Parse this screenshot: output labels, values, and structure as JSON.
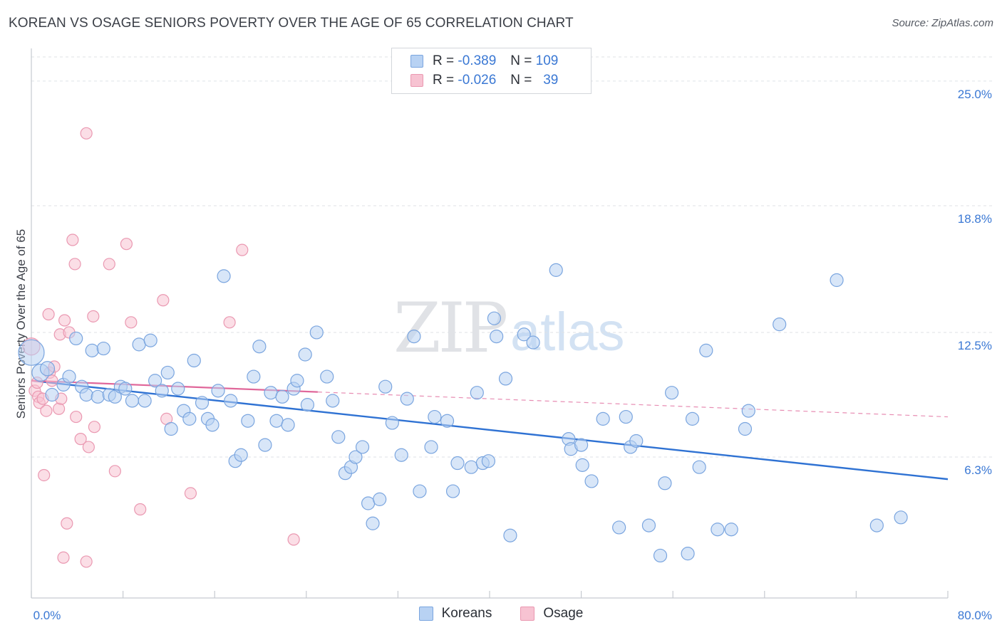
{
  "title": "KOREAN VS OSAGE SENIORS POVERTY OVER THE AGE OF 65 CORRELATION CHART",
  "source": "Source: ZipAtlas.com",
  "watermark": {
    "zip": "ZIP",
    "atlas": "atlas"
  },
  "legend": {
    "rows": [
      {
        "r_label": "R = ",
        "r_value": "-0.389",
        "n_label": "N = ",
        "n_value": "109"
      },
      {
        "r_label": "R = ",
        "r_value": "-0.026",
        "n_label": "N = ",
        "n_value": "39"
      }
    ]
  },
  "bottom_legend": [
    "Koreans",
    "Osage"
  ],
  "colors": {
    "korean_fill": "#b8d2f3",
    "korean_stroke": "#7aa5df",
    "korean_line": "#2f72d3",
    "osage_fill": "#f7c3d2",
    "osage_stroke": "#ea98b1",
    "osage_line": "#e0679a",
    "axis_text": "#3a78d4",
    "grid": "#dfe2e6"
  },
  "chart_data": {
    "type": "scatter",
    "title": "KOREAN VS OSAGE SENIORS POVERTY OVER THE AGE OF 65 CORRELATION CHART",
    "xlabel": "",
    "ylabel": "Seniors Poverty Over the Age of 65",
    "xlim": [
      0,
      80
    ],
    "ylim": [
      0,
      26.2
    ],
    "x_tick_labels": [
      "0.0%",
      "80.0%"
    ],
    "y_ticks": [
      6.3,
      12.5,
      18.8,
      25.0
    ],
    "y_tick_labels": [
      "6.3%",
      "12.5%",
      "18.8%",
      "25.0%"
    ],
    "grid": true,
    "legend_position": "top-center",
    "series": [
      {
        "name": "Koreans",
        "r": -0.389,
        "n": 109,
        "trend": {
          "x": [
            0,
            80
          ],
          "y": [
            10.1,
            5.2
          ]
        },
        "points": [
          [
            0.0,
            11.5,
            18
          ],
          [
            0.8,
            10.5,
            12
          ],
          [
            1.4,
            10.7,
            10
          ],
          [
            1.8,
            9.4,
            9
          ],
          [
            2.8,
            9.9,
            9
          ],
          [
            3.3,
            10.3,
            9
          ],
          [
            3.9,
            12.2,
            9
          ],
          [
            4.4,
            9.8,
            9
          ],
          [
            4.8,
            9.4,
            9
          ],
          [
            5.3,
            11.6,
            9
          ],
          [
            5.8,
            9.3,
            9
          ],
          [
            6.3,
            11.7,
            9
          ],
          [
            6.8,
            9.4,
            9
          ],
          [
            7.3,
            9.3,
            9
          ],
          [
            7.8,
            9.8,
            9
          ],
          [
            8.2,
            9.7,
            9
          ],
          [
            8.8,
            9.1,
            9
          ],
          [
            9.4,
            11.9,
            9
          ],
          [
            9.9,
            9.1,
            9
          ],
          [
            10.4,
            12.1,
            9
          ],
          [
            10.8,
            10.1,
            9
          ],
          [
            11.4,
            9.6,
            9
          ],
          [
            11.9,
            10.5,
            9
          ],
          [
            12.2,
            7.7,
            9
          ],
          [
            12.8,
            9.7,
            9
          ],
          [
            13.3,
            8.6,
            9
          ],
          [
            13.8,
            8.2,
            9
          ],
          [
            14.2,
            11.1,
            9
          ],
          [
            14.9,
            9.0,
            9
          ],
          [
            15.4,
            8.2,
            9
          ],
          [
            15.8,
            7.9,
            9
          ],
          [
            16.3,
            9.6,
            9
          ],
          [
            16.8,
            15.3,
            9
          ],
          [
            17.4,
            9.1,
            9
          ],
          [
            17.8,
            6.1,
            9
          ],
          [
            18.3,
            6.4,
            9
          ],
          [
            18.9,
            8.1,
            9
          ],
          [
            19.4,
            10.3,
            9
          ],
          [
            19.9,
            11.8,
            9
          ],
          [
            20.4,
            6.9,
            9
          ],
          [
            20.9,
            9.5,
            9
          ],
          [
            21.4,
            8.1,
            9
          ],
          [
            21.9,
            9.3,
            9
          ],
          [
            22.4,
            7.9,
            9
          ],
          [
            22.9,
            9.7,
            9
          ],
          [
            23.2,
            10.1,
            9
          ],
          [
            23.9,
            11.4,
            9
          ],
          [
            24.1,
            8.9,
            9
          ],
          [
            24.9,
            12.5,
            9
          ],
          [
            25.8,
            10.3,
            9
          ],
          [
            26.3,
            9.1,
            9
          ],
          [
            26.8,
            7.3,
            9
          ],
          [
            27.4,
            5.5,
            9
          ],
          [
            27.9,
            5.8,
            9
          ],
          [
            28.3,
            6.3,
            9
          ],
          [
            28.9,
            6.8,
            9
          ],
          [
            29.4,
            4.0,
            9
          ],
          [
            29.8,
            3.0,
            9
          ],
          [
            30.4,
            4.2,
            9
          ],
          [
            30.9,
            9.8,
            9
          ],
          [
            31.5,
            8.0,
            9
          ],
          [
            32.3,
            6.4,
            9
          ],
          [
            32.8,
            9.2,
            9
          ],
          [
            33.4,
            12.3,
            9
          ],
          [
            33.9,
            4.6,
            9
          ],
          [
            34.9,
            6.8,
            9
          ],
          [
            35.2,
            8.3,
            9
          ],
          [
            36.3,
            8.1,
            9
          ],
          [
            36.8,
            4.6,
            9
          ],
          [
            37.2,
            6.0,
            9
          ],
          [
            38.4,
            5.8,
            9
          ],
          [
            38.9,
            9.5,
            9
          ],
          [
            39.4,
            6.0,
            9
          ],
          [
            39.9,
            6.1,
            9
          ],
          [
            40.4,
            13.2,
            9
          ],
          [
            40.6,
            12.3,
            9
          ],
          [
            41.8,
            2.4,
            9
          ],
          [
            41.4,
            10.2,
            9
          ],
          [
            43.0,
            12.4,
            9
          ],
          [
            43.8,
            12.0,
            9
          ],
          [
            45.8,
            15.6,
            9
          ],
          [
            46.9,
            7.2,
            9
          ],
          [
            47.1,
            6.7,
            9
          ],
          [
            48.0,
            6.9,
            9
          ],
          [
            48.1,
            5.9,
            9
          ],
          [
            48.9,
            5.1,
            9
          ],
          [
            49.9,
            8.2,
            9
          ],
          [
            51.3,
            2.8,
            9
          ],
          [
            51.9,
            8.3,
            9
          ],
          [
            52.3,
            6.8,
            9
          ],
          [
            52.8,
            7.1,
            9
          ],
          [
            53.9,
            2.9,
            9
          ],
          [
            54.9,
            1.4,
            9
          ],
          [
            55.3,
            5.0,
            9
          ],
          [
            55.9,
            9.5,
            9
          ],
          [
            57.3,
            1.5,
            9
          ],
          [
            57.7,
            8.2,
            9
          ],
          [
            58.3,
            5.8,
            9
          ],
          [
            58.9,
            11.6,
            9
          ],
          [
            59.9,
            2.7,
            9
          ],
          [
            61.1,
            2.7,
            9
          ],
          [
            62.3,
            7.7,
            9
          ],
          [
            62.6,
            8.6,
            9
          ],
          [
            65.3,
            12.9,
            9
          ],
          [
            70.3,
            15.1,
            9
          ],
          [
            73.8,
            2.9,
            9
          ],
          [
            75.9,
            3.3,
            9
          ]
        ]
      },
      {
        "name": "Osage",
        "r": -0.026,
        "n": 39,
        "trend": {
          "x": [
            0,
            80
          ],
          "y": [
            10.1,
            8.3
          ]
        },
        "trend_solid_until": 25,
        "points": [
          [
            0.0,
            11.8,
            12
          ],
          [
            0.3,
            9.6,
            8
          ],
          [
            0.5,
            10.0,
            8
          ],
          [
            0.6,
            9.3,
            8
          ],
          [
            0.7,
            9.0,
            8
          ],
          [
            1.0,
            9.2,
            8
          ],
          [
            1.3,
            8.6,
            8
          ],
          [
            1.5,
            13.4,
            8
          ],
          [
            1.6,
            10.5,
            8
          ],
          [
            1.8,
            10.1,
            8
          ],
          [
            2.0,
            10.8,
            8
          ],
          [
            2.4,
            8.7,
            8
          ],
          [
            2.5,
            12.4,
            8
          ],
          [
            2.6,
            9.2,
            8
          ],
          [
            2.8,
            1.3,
            8
          ],
          [
            2.9,
            13.1,
            8
          ],
          [
            3.1,
            3.0,
            8
          ],
          [
            3.3,
            12.5,
            8
          ],
          [
            3.6,
            17.1,
            8
          ],
          [
            3.8,
            15.9,
            8
          ],
          [
            3.9,
            8.3,
            8
          ],
          [
            4.3,
            7.2,
            8
          ],
          [
            4.8,
            1.1,
            8
          ],
          [
            4.8,
            22.4,
            8
          ],
          [
            5.0,
            6.8,
            8
          ],
          [
            5.4,
            13.3,
            8
          ],
          [
            5.5,
            7.8,
            8
          ],
          [
            6.8,
            15.9,
            8
          ],
          [
            7.3,
            5.6,
            8
          ],
          [
            8.3,
            16.9,
            8
          ],
          [
            8.7,
            13.0,
            8
          ],
          [
            9.5,
            3.7,
            8
          ],
          [
            11.5,
            14.1,
            8
          ],
          [
            11.8,
            8.2,
            8
          ],
          [
            13.9,
            4.5,
            8
          ],
          [
            17.3,
            13.0,
            8
          ],
          [
            18.4,
            16.6,
            8
          ],
          [
            22.9,
            2.2,
            8
          ],
          [
            1.1,
            5.4,
            8
          ]
        ]
      }
    ]
  }
}
